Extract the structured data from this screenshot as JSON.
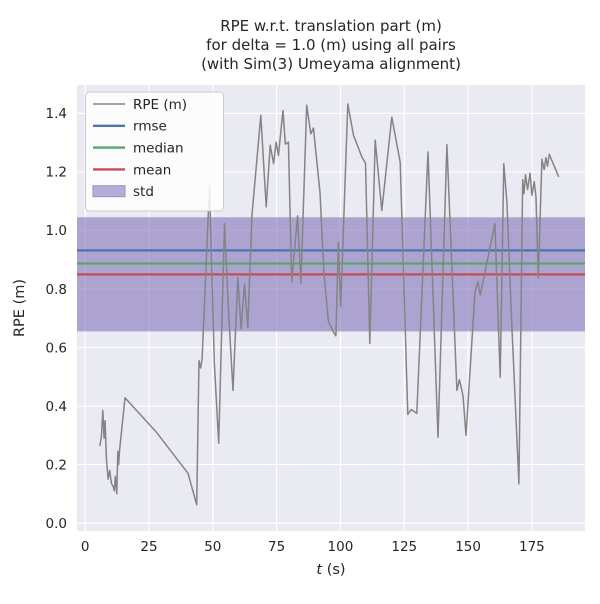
{
  "title": {
    "line1": "RPE w.r.t. translation part (m)",
    "line2": "for delta = 1.0 (m) using all pairs",
    "line3": "(with Sim(3) Umeyama alignment)"
  },
  "axes": {
    "x": {
      "label_italic": "t",
      "label_rest": " (s)",
      "min": -3.2,
      "max": 195.8,
      "ticks": [
        0,
        25,
        50,
        75,
        100,
        125,
        150,
        175
      ]
    },
    "y": {
      "label": "RPE (m)",
      "min": -0.027,
      "max": 1.497,
      "ticks": [
        0.0,
        0.2,
        0.4,
        0.6,
        0.8,
        1.0,
        1.2,
        1.4
      ],
      "tick_labels": [
        "0.0",
        "0.2",
        "0.4",
        "0.6",
        "0.8",
        "1.0",
        "1.2",
        "1.4"
      ]
    }
  },
  "legend": {
    "items": [
      {
        "label": "RPE (m)",
        "type": "line",
        "color": "#848484"
      },
      {
        "label": "rmse",
        "type": "line",
        "color": "#4c72b0"
      },
      {
        "label": "median",
        "type": "line",
        "color": "#55a868"
      },
      {
        "label": "mean",
        "type": "line",
        "color": "#c44e52"
      },
      {
        "label": "std",
        "type": "patch",
        "color": "#b6add9",
        "edge": "#9890c3"
      }
    ]
  },
  "stats": {
    "rmse": 0.932,
    "median": 0.887,
    "mean": 0.85,
    "std": 0.195,
    "std_band": [
      0.655,
      1.045
    ]
  },
  "colors": {
    "figure_bg": "#ffffff",
    "axes_bg": "#eaeaf2",
    "grid": "#ffffff",
    "text": "#262626",
    "rpe": "#848484",
    "rmse": "#4c72b0",
    "median": "#55a868",
    "mean": "#c44e52",
    "std_fill": "#8878bd",
    "std_fill_opacity": 0.62,
    "legend_bg": "#ffffff",
    "legend_border": "#cccccc"
  },
  "chart_data": {
    "type": "line",
    "title": "RPE w.r.t. translation part (m) for delta = 1.0 (m) using all pairs (with Sim(3) Umeyama alignment)",
    "xlabel": "t (s)",
    "ylabel": "RPE (m)",
    "xlim": [
      -3.2,
      195.8
    ],
    "ylim": [
      -0.027,
      1.497
    ],
    "grid": true,
    "legend_position": "upper left",
    "hlines": [
      {
        "name": "rmse",
        "value": 0.932
      },
      {
        "name": "median",
        "value": 0.887
      },
      {
        "name": "mean",
        "value": 0.85
      }
    ],
    "band": {
      "name": "std",
      "from": 0.655,
      "to": 1.045
    },
    "series": [
      {
        "name": "RPE (m)",
        "points": [
          [
            5.8,
            0.265
          ],
          [
            6.4,
            0.3
          ],
          [
            6.9,
            0.385
          ],
          [
            7.4,
            0.29
          ],
          [
            7.8,
            0.35
          ],
          [
            8.3,
            0.22
          ],
          [
            9.0,
            0.15
          ],
          [
            9.6,
            0.18
          ],
          [
            10.3,
            0.135
          ],
          [
            11.0,
            0.125
          ],
          [
            11.4,
            0.11
          ],
          [
            11.8,
            0.16
          ],
          [
            12.4,
            0.1
          ],
          [
            12.8,
            0.245
          ],
          [
            13.1,
            0.2
          ],
          [
            13.5,
            0.25
          ],
          [
            15.6,
            0.428
          ],
          [
            28.0,
            0.31
          ],
          [
            40.3,
            0.17
          ],
          [
            43.7,
            0.063
          ],
          [
            44.6,
            0.555
          ],
          [
            45.2,
            0.53
          ],
          [
            45.8,
            0.56
          ],
          [
            48.7,
            1.154
          ],
          [
            50.6,
            0.55
          ],
          [
            52.3,
            0.273
          ],
          [
            54.6,
            1.023
          ],
          [
            56.2,
            0.72
          ],
          [
            57.9,
            0.453
          ],
          [
            59.8,
            0.84
          ],
          [
            61.1,
            0.664
          ],
          [
            62.4,
            0.818
          ],
          [
            63.7,
            0.669
          ],
          [
            65.3,
            1.05
          ],
          [
            68.8,
            1.393
          ],
          [
            70.9,
            1.08
          ],
          [
            72.5,
            1.291
          ],
          [
            73.8,
            1.228
          ],
          [
            74.8,
            1.302
          ],
          [
            75.7,
            1.256
          ],
          [
            77.5,
            1.41
          ],
          [
            78.4,
            1.295
          ],
          [
            79.6,
            1.302
          ],
          [
            80.9,
            0.825
          ],
          [
            83.2,
            1.05
          ],
          [
            84.5,
            0.82
          ],
          [
            86.8,
            1.428
          ],
          [
            88.4,
            1.33
          ],
          [
            89.4,
            1.35
          ],
          [
            92.0,
            1.13
          ],
          [
            93.5,
            0.855
          ],
          [
            95.3,
            0.69
          ],
          [
            97.3,
            0.652
          ],
          [
            98.2,
            0.64
          ],
          [
            99.2,
            0.96
          ],
          [
            100.1,
            0.74
          ],
          [
            102.9,
            1.432
          ],
          [
            105.1,
            1.325
          ],
          [
            108.4,
            1.251
          ],
          [
            109.8,
            1.23
          ],
          [
            111.5,
            0.614
          ],
          [
            113.6,
            1.308
          ],
          [
            116.2,
            1.068
          ],
          [
            120.1,
            1.387
          ],
          [
            123.4,
            1.233
          ],
          [
            126.4,
            0.371
          ],
          [
            127.7,
            0.388
          ],
          [
            129.9,
            0.375
          ],
          [
            134.3,
            1.268
          ],
          [
            138.2,
            0.293
          ],
          [
            141.7,
            1.293
          ],
          [
            145.6,
            0.453
          ],
          [
            146.6,
            0.49
          ],
          [
            148.0,
            0.436
          ],
          [
            149.2,
            0.3
          ],
          [
            152.7,
            0.79
          ],
          [
            153.8,
            0.825
          ],
          [
            154.8,
            0.78
          ],
          [
            160.5,
            1.023
          ],
          [
            162.6,
            0.498
          ],
          [
            164.0,
            1.228
          ],
          [
            165.2,
            1.097
          ],
          [
            167.1,
            0.686
          ],
          [
            169.9,
            0.134
          ],
          [
            171.4,
            1.173
          ],
          [
            171.9,
            1.126
          ],
          [
            172.5,
            1.19
          ],
          [
            173.3,
            1.14
          ],
          [
            174.3,
            1.196
          ],
          [
            175.0,
            1.12
          ],
          [
            175.9,
            1.167
          ],
          [
            176.6,
            1.114
          ],
          [
            177.5,
            0.839
          ],
          [
            178.9,
            1.243
          ],
          [
            179.8,
            1.208
          ],
          [
            180.5,
            1.249
          ],
          [
            181.1,
            1.22
          ],
          [
            181.8,
            1.26
          ],
          [
            185.4,
            1.185
          ]
        ]
      }
    ]
  }
}
